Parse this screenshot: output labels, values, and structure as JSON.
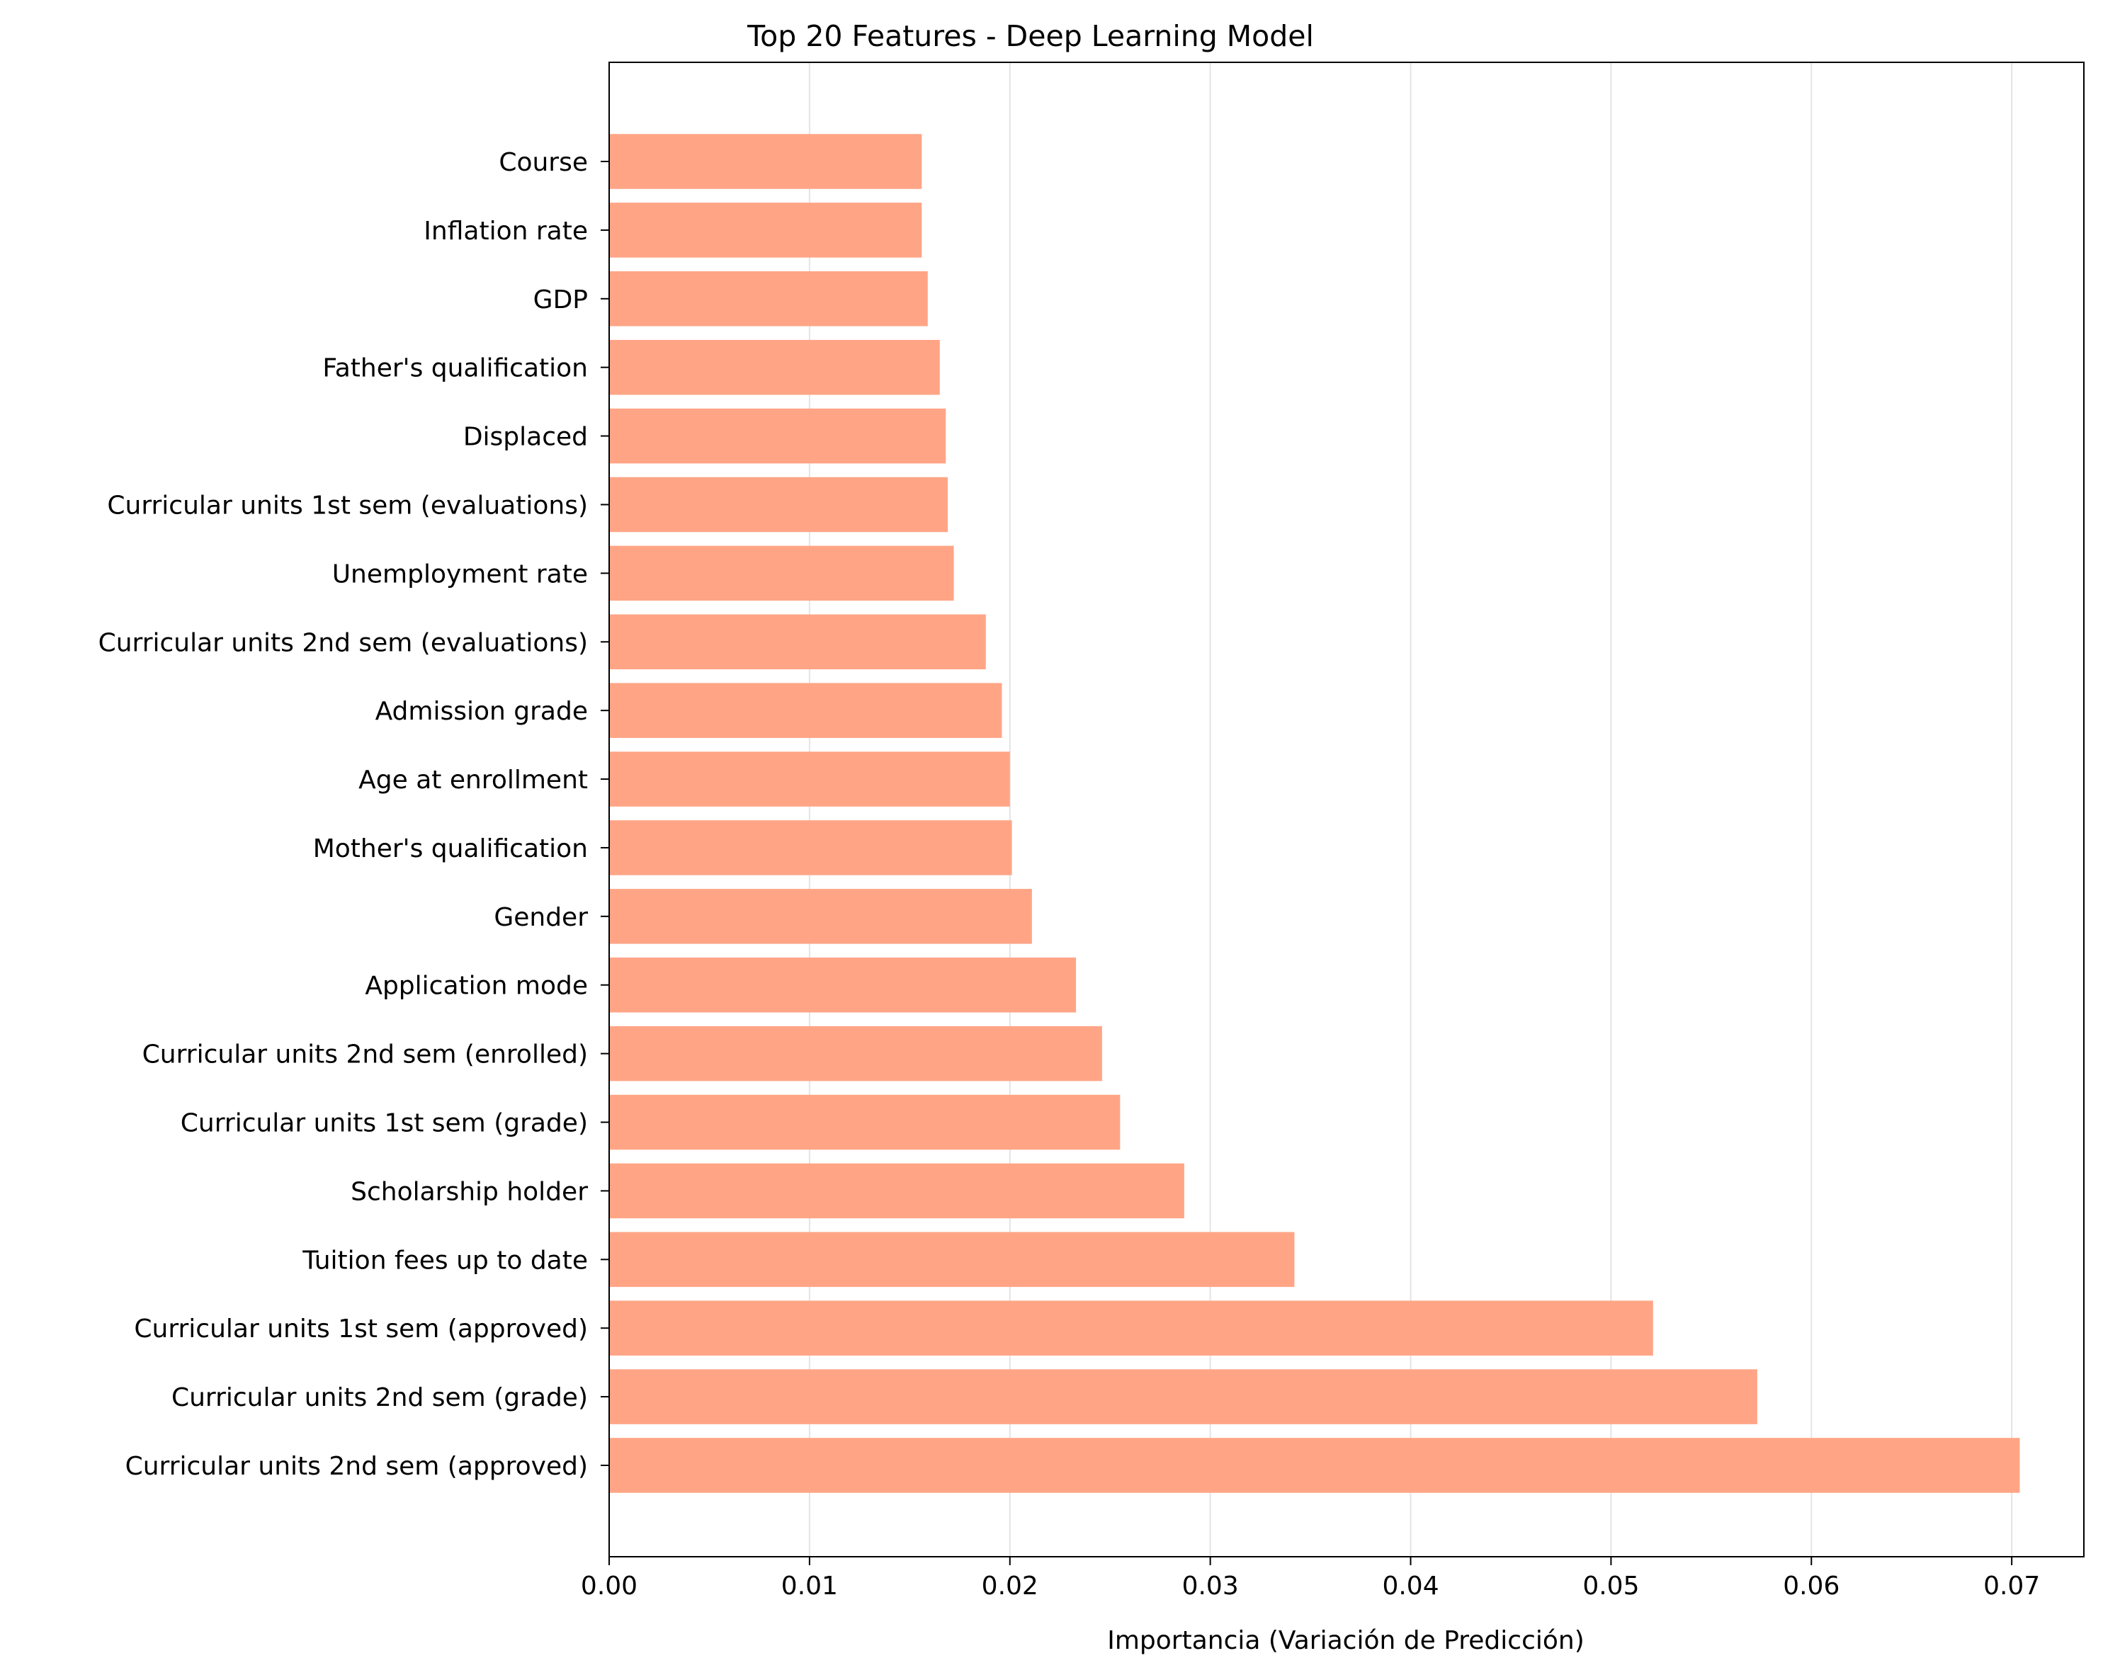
{
  "chart_data": {
    "type": "bar",
    "orientation": "horizontal",
    "title": "Top 20 Features - Deep Learning Model",
    "xlabel": "Importancia (Variación de Predicción)",
    "ylabel": "",
    "xlim": [
      0,
      0.0736
    ],
    "xticks": [
      "0.00",
      "0.01",
      "0.02",
      "0.03",
      "0.04",
      "0.05",
      "0.06",
      "0.07"
    ],
    "grid": "vertical",
    "bar_color": "#FFA586",
    "categories": [
      "Curricular units 2nd sem (approved)",
      "Curricular units 2nd sem (grade)",
      "Curricular units 1st sem (approved)",
      "Tuition fees up to date",
      "Scholarship holder",
      "Curricular units 1st sem (grade)",
      "Curricular units 2nd sem (enrolled)",
      "Application mode",
      "Gender",
      "Mother's qualification",
      "Age at enrollment",
      "Admission grade",
      "Curricular units 2nd sem (evaluations)",
      "Unemployment rate",
      "Curricular units 1st sem (evaluations)",
      "Displaced",
      "Father's qualification",
      "GDP",
      "Inflation rate",
      "Course"
    ],
    "values": [
      0.0704,
      0.0573,
      0.0521,
      0.0342,
      0.0287,
      0.0255,
      0.0246,
      0.0233,
      0.0211,
      0.0201,
      0.02,
      0.0196,
      0.0188,
      0.0172,
      0.0169,
      0.0168,
      0.0165,
      0.0159,
      0.0156,
      0.0156
    ]
  }
}
